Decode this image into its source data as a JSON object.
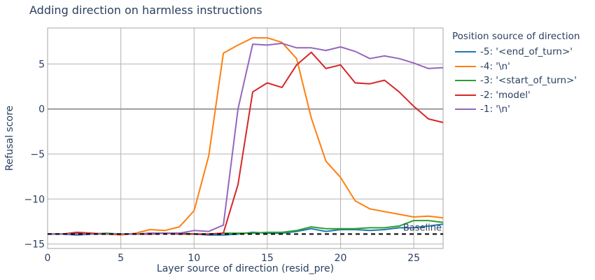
{
  "chart_data": {
    "type": "line",
    "title": "Adding direction on harmless instructions",
    "xlabel": "Layer source of direction (resid_pre)",
    "ylabel": "Refusal score",
    "xlim": [
      0,
      27
    ],
    "ylim": [
      -15.5,
      9.0
    ],
    "x_ticks": [
      0,
      5,
      10,
      15,
      20,
      25
    ],
    "y_ticks": [
      -15,
      -10,
      -5,
      0,
      5
    ],
    "grid": true,
    "legend_title": "Position source of direction",
    "legend_position": "right",
    "baseline": {
      "label": "Baseline",
      "value": -13.9,
      "style": "dashed",
      "color": "#000000"
    },
    "x": [
      0,
      1,
      2,
      3,
      4,
      5,
      6,
      7,
      8,
      9,
      10,
      11,
      12,
      13,
      14,
      15,
      16,
      17,
      18,
      19,
      20,
      21,
      22,
      23,
      24,
      25,
      26,
      27
    ],
    "series": [
      {
        "name": "-5: '<end_of_turn>'",
        "color": "#1f77b4",
        "values": [
          -13.9,
          -13.9,
          -14.0,
          -13.9,
          -13.9,
          -13.9,
          -13.9,
          -13.9,
          -13.8,
          -13.8,
          -13.9,
          -14.0,
          -14.0,
          -13.9,
          -13.7,
          -13.8,
          -13.8,
          -13.6,
          -13.3,
          -13.6,
          -13.4,
          -13.4,
          -13.5,
          -13.4,
          -13.2,
          -13.2,
          -13.0,
          -12.8
        ]
      },
      {
        "name": "-4: '\\n'",
        "color": "#ff7f0e",
        "values": [
          -13.9,
          -13.9,
          -13.8,
          -13.9,
          -13.9,
          -14.0,
          -13.8,
          -13.4,
          -13.5,
          -13.1,
          -11.3,
          -5.2,
          6.2,
          7.1,
          7.9,
          7.9,
          7.4,
          5.6,
          -1.0,
          -5.8,
          -7.6,
          -10.2,
          -11.1,
          -11.4,
          -11.7,
          -12.0,
          -11.9,
          -12.1
        ]
      },
      {
        "name": "-3: '<start_of_turn>'",
        "color": "#2ca02c",
        "values": [
          -13.9,
          -13.9,
          -13.8,
          -13.9,
          -13.8,
          -13.9,
          -13.9,
          -13.8,
          -13.8,
          -13.8,
          -13.9,
          -13.9,
          -13.8,
          -13.8,
          -13.8,
          -13.7,
          -13.7,
          -13.5,
          -13.1,
          -13.3,
          -13.3,
          -13.3,
          -13.2,
          -13.2,
          -13.0,
          -12.4,
          -12.4,
          -12.6
        ]
      },
      {
        "name": "-2: 'model'",
        "color": "#d62728",
        "values": [
          -13.9,
          -13.9,
          -13.7,
          -13.8,
          -13.9,
          -13.9,
          -13.9,
          -13.9,
          -13.8,
          -13.9,
          -13.9,
          -13.9,
          -13.8,
          -8.4,
          1.9,
          2.9,
          2.4,
          4.9,
          6.3,
          4.5,
          4.9,
          2.9,
          2.8,
          3.2,
          1.9,
          0.3,
          -1.1,
          -1.5
        ]
      },
      {
        "name": "-1: '\\n'",
        "color": "#9467bd",
        "values": [
          -13.9,
          -13.9,
          -13.9,
          -13.9,
          -13.9,
          -13.9,
          -13.9,
          -13.8,
          -13.8,
          -13.8,
          -13.5,
          -13.6,
          -12.9,
          0.0,
          7.2,
          7.1,
          7.3,
          6.8,
          6.8,
          6.5,
          6.9,
          6.4,
          5.6,
          5.9,
          5.6,
          5.1,
          4.5,
          4.6
        ]
      }
    ]
  }
}
